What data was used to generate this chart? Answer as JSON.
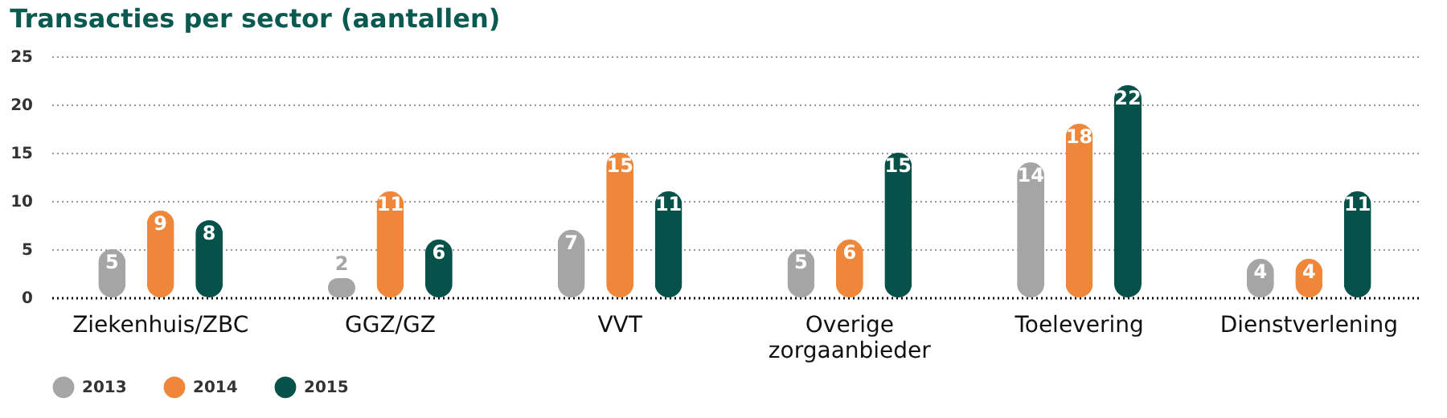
{
  "chart_data": {
    "type": "bar",
    "title": "Transacties per sector (aantallen)",
    "categories": [
      "Ziekenhuis/ZBC",
      "GGZ/GZ",
      "VVT",
      "Overige zorgaanbieder",
      "Toelevering",
      "Dienstverlening"
    ],
    "series": [
      {
        "name": "2013",
        "color": "#a5a5a5",
        "values": [
          5,
          2,
          7,
          5,
          14,
          4
        ]
      },
      {
        "name": "2014",
        "color": "#ef873a",
        "values": [
          9,
          11,
          15,
          6,
          18,
          4
        ]
      },
      {
        "name": "2015",
        "color": "#06524b",
        "values": [
          8,
          6,
          11,
          15,
          22,
          11
        ]
      }
    ],
    "ylim": [
      0,
      25
    ],
    "yticks": [
      0,
      5,
      10,
      15,
      20,
      25
    ],
    "grid": "y",
    "legend": "bottom",
    "data_labels": true
  }
}
